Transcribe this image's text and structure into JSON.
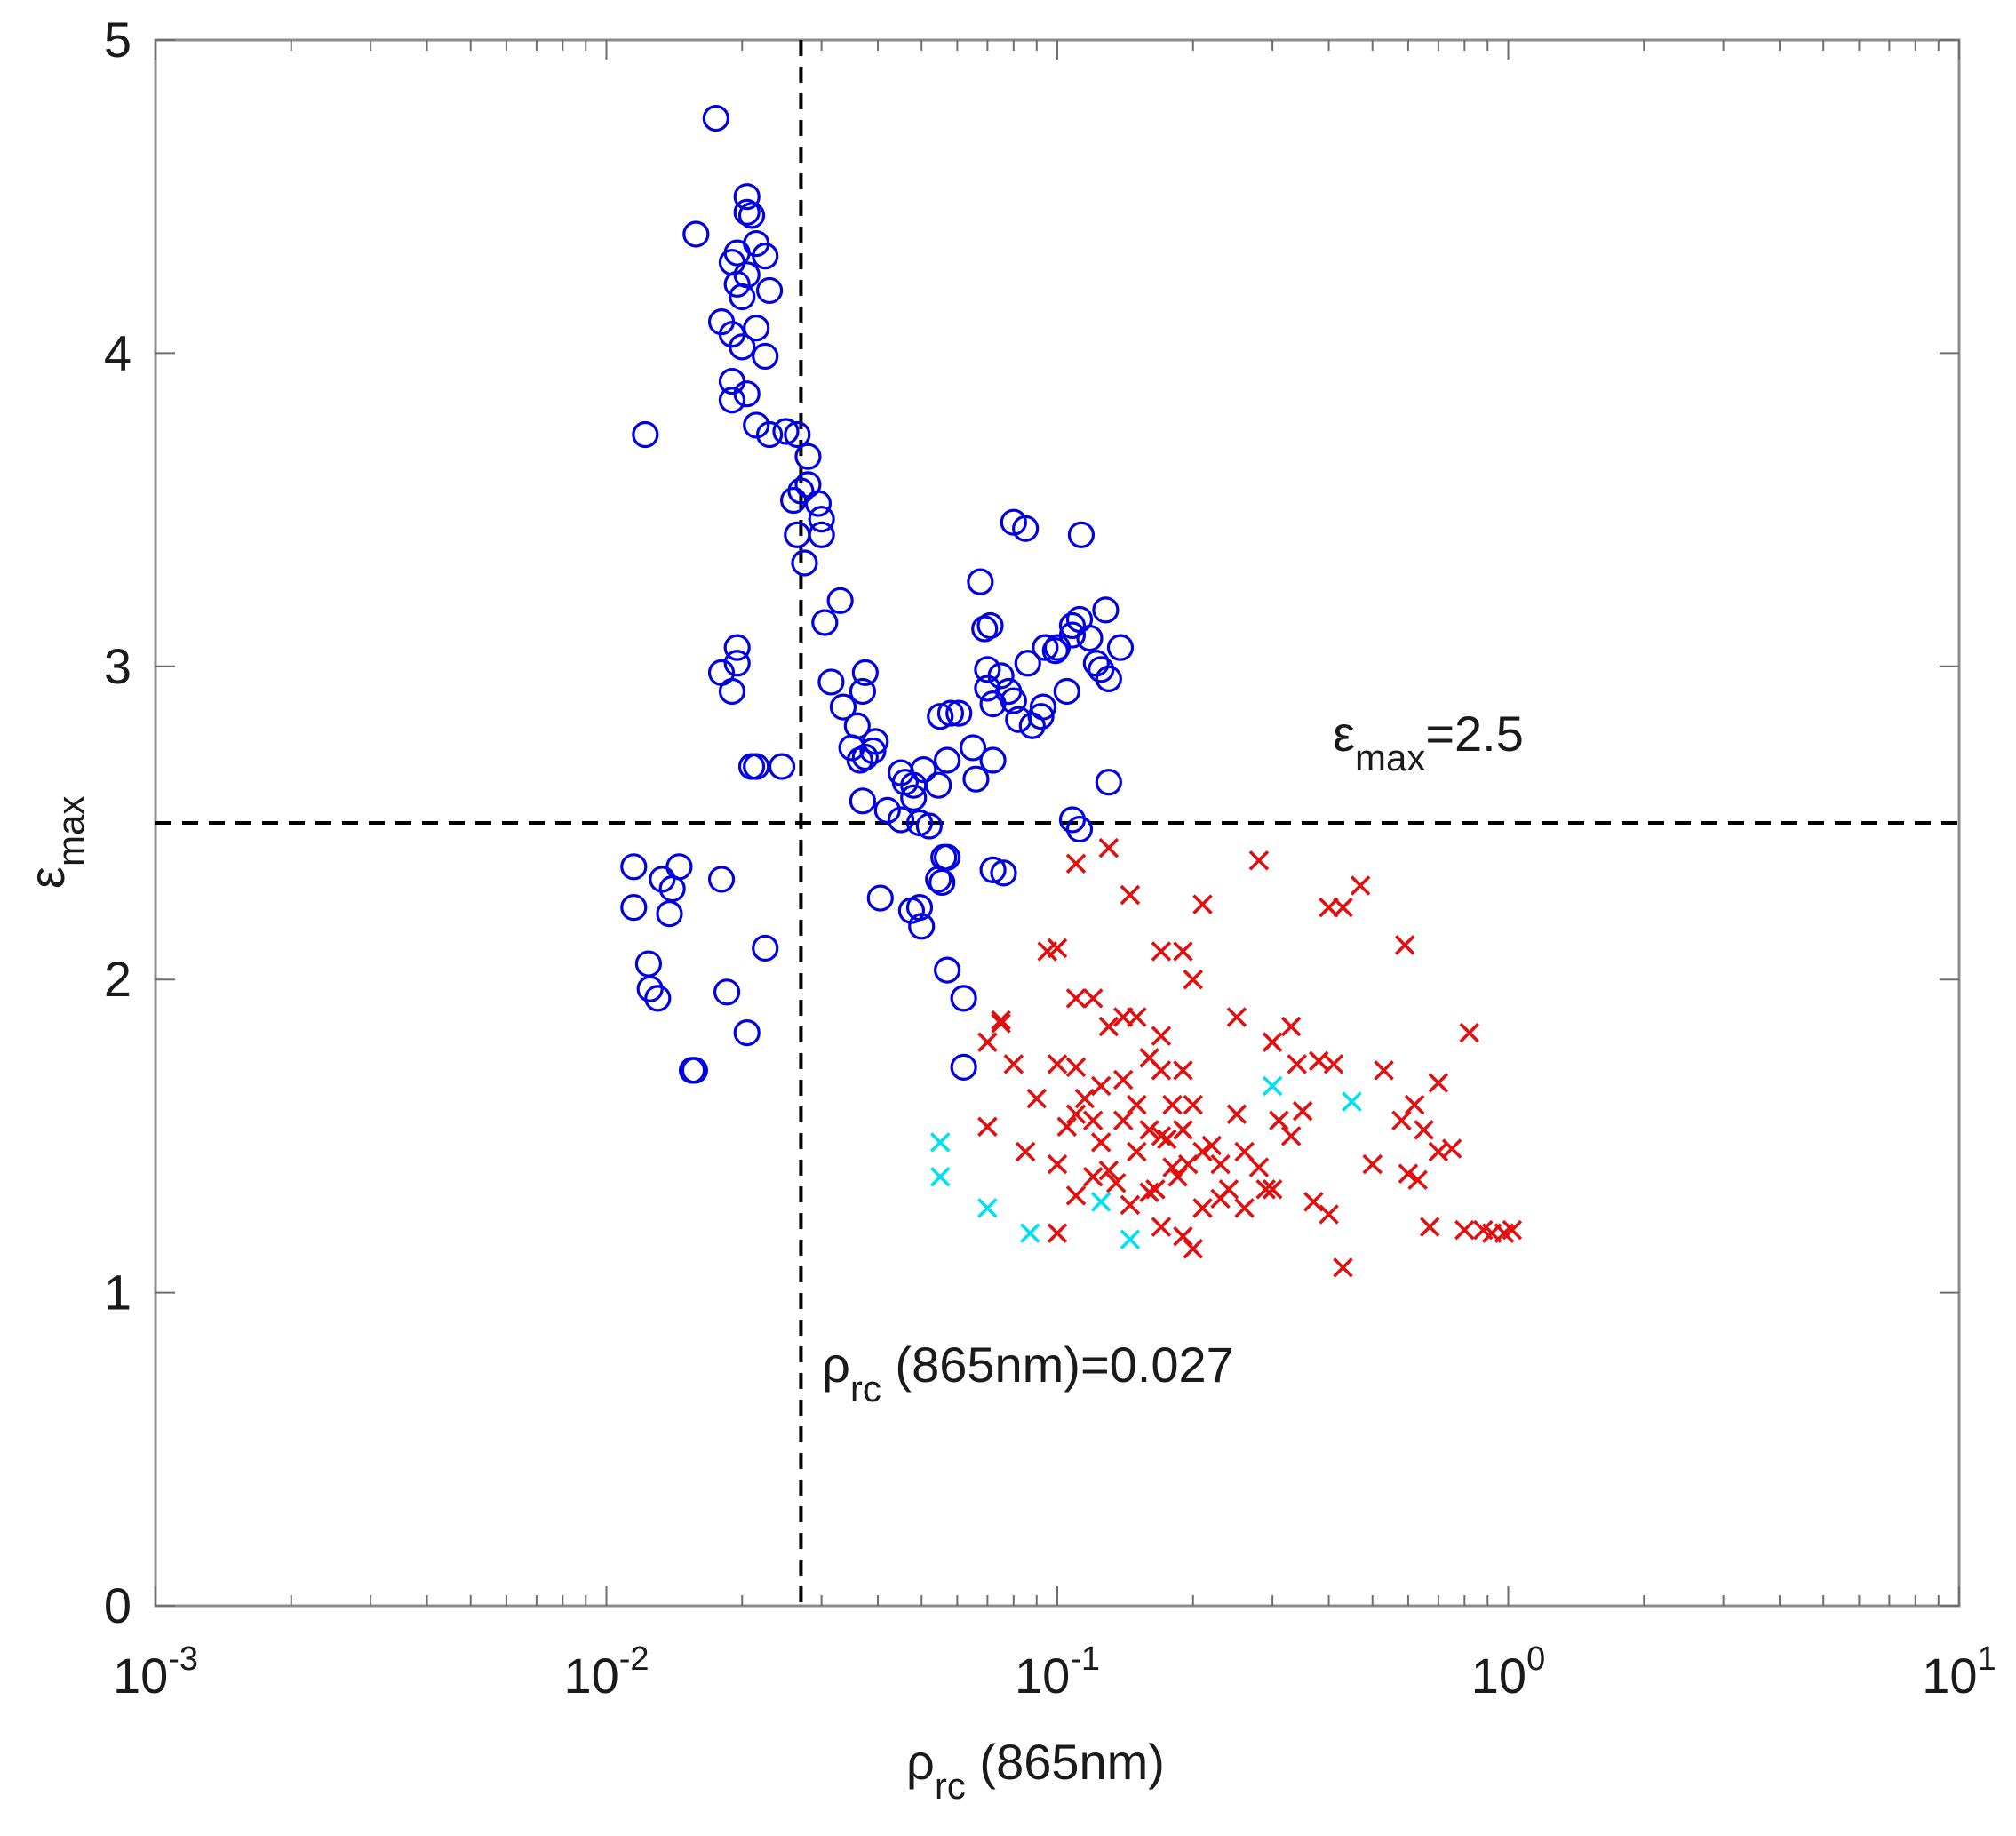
{
  "chart_data": {
    "type": "scatter",
    "title": "",
    "xlabel": {
      "symbol": "ρ",
      "subscript": "rc",
      "suffix": " (865nm)"
    },
    "ylabel": {
      "symbol": "ε",
      "subscript": "max"
    },
    "xscale": "log",
    "xlim": [
      0.001,
      10
    ],
    "ylim": [
      0,
      5
    ],
    "x_ticks": [
      {
        "value": 0.001,
        "base": "10",
        "exp": "-3"
      },
      {
        "value": 0.01,
        "base": "10",
        "exp": "-2"
      },
      {
        "value": 0.1,
        "base": "10",
        "exp": "-1"
      },
      {
        "value": 1,
        "base": "10",
        "exp": "0"
      },
      {
        "value": 10,
        "base": "10",
        "exp": "1"
      }
    ],
    "y_ticks": [
      0,
      1,
      2,
      3,
      4,
      5
    ],
    "grid": false,
    "thresholds": [
      {
        "orientation": "horizontal",
        "value": 2.5,
        "label": {
          "symbol": "ε",
          "subscript": "max",
          "suffix": "=2.5"
        }
      },
      {
        "orientation": "vertical",
        "value": 0.027,
        "label": {
          "symbol": "ρ",
          "subscript": "rc",
          "suffix": " (865nm)=0.027"
        }
      }
    ],
    "series": [
      {
        "name": "blue circles",
        "marker": "circle",
        "color": "#0000e0",
        "points": [
          [
            0.0175,
            4.75
          ],
          [
            0.0205,
            4.5
          ],
          [
            0.0205,
            4.45
          ],
          [
            0.021,
            4.44
          ],
          [
            0.0158,
            4.38
          ],
          [
            0.0215,
            4.35
          ],
          [
            0.0195,
            4.32
          ],
          [
            0.0225,
            4.31
          ],
          [
            0.019,
            4.29
          ],
          [
            0.0205,
            4.25
          ],
          [
            0.0195,
            4.22
          ],
          [
            0.023,
            4.2
          ],
          [
            0.02,
            4.18
          ],
          [
            0.018,
            4.1
          ],
          [
            0.0215,
            4.08
          ],
          [
            0.019,
            4.06
          ],
          [
            0.02,
            4.02
          ],
          [
            0.0225,
            3.99
          ],
          [
            0.019,
            3.91
          ],
          [
            0.0205,
            3.87
          ],
          [
            0.019,
            3.85
          ],
          [
            0.0215,
            3.77
          ],
          [
            0.023,
            3.74
          ],
          [
            0.025,
            3.75
          ],
          [
            0.0122,
            3.74
          ],
          [
            0.0265,
            3.74
          ],
          [
            0.028,
            3.67
          ],
          [
            0.028,
            3.58
          ],
          [
            0.027,
            3.56
          ],
          [
            0.026,
            3.53
          ],
          [
            0.0295,
            3.52
          ],
          [
            0.03,
            3.47
          ],
          [
            0.03,
            3.42
          ],
          [
            0.0265,
            3.42
          ],
          [
            0.0275,
            3.33
          ],
          [
            0.033,
            3.21
          ],
          [
            0.0305,
            3.14
          ],
          [
            0.0195,
            3.06
          ],
          [
            0.0195,
            3.01
          ],
          [
            0.018,
            2.98
          ],
          [
            0.019,
            2.92
          ],
          [
            0.0315,
            2.95
          ],
          [
            0.0375,
            2.98
          ],
          [
            0.037,
            2.92
          ],
          [
            0.0335,
            2.87
          ],
          [
            0.021,
            2.68
          ],
          [
            0.0215,
            2.68
          ],
          [
            0.0245,
            2.68
          ],
          [
            0.036,
            2.81
          ],
          [
            0.035,
            2.74
          ],
          [
            0.0395,
            2.76
          ],
          [
            0.039,
            2.73
          ],
          [
            0.0365,
            2.7
          ],
          [
            0.0375,
            2.71
          ],
          [
            0.045,
            2.66
          ],
          [
            0.046,
            2.63
          ],
          [
            0.048,
            2.62
          ],
          [
            0.0505,
            2.67
          ],
          [
            0.048,
            2.58
          ],
          [
            0.037,
            2.57
          ],
          [
            0.042,
            2.54
          ],
          [
            0.045,
            2.51
          ],
          [
            0.0495,
            2.5
          ],
          [
            0.052,
            2.49
          ],
          [
            0.0405,
            2.26
          ],
          [
            0.0475,
            2.22
          ],
          [
            0.0495,
            2.23
          ],
          [
            0.05,
            2.17
          ],
          [
            0.056,
            2.39
          ],
          [
            0.0545,
            2.32
          ],
          [
            0.057,
            2.39
          ],
          [
            0.0555,
            2.31
          ],
          [
            0.0545,
            2.62
          ],
          [
            0.055,
            2.84
          ],
          [
            0.058,
            2.85
          ],
          [
            0.0605,
            2.85
          ],
          [
            0.057,
            2.7
          ],
          [
            0.065,
            2.74
          ],
          [
            0.066,
            2.64
          ],
          [
            0.072,
            2.7
          ],
          [
            0.0675,
            3.27
          ],
          [
            0.069,
            3.12
          ],
          [
            0.071,
            3.13
          ],
          [
            0.07,
            2.99
          ],
          [
            0.075,
            2.97
          ],
          [
            0.07,
            2.93
          ],
          [
            0.072,
            2.88
          ],
          [
            0.078,
            2.92
          ],
          [
            0.08,
            2.89
          ],
          [
            0.082,
            2.83
          ],
          [
            0.086,
            3.01
          ],
          [
            0.088,
            2.81
          ],
          [
            0.092,
            2.84
          ],
          [
            0.094,
            3.06
          ],
          [
            0.099,
            3.05
          ],
          [
            0.093,
            2.87
          ],
          [
            0.1,
            3.06
          ],
          [
            0.105,
            2.92
          ],
          [
            0.108,
            3.13
          ],
          [
            0.112,
            3.15
          ],
          [
            0.108,
            3.1
          ],
          [
            0.118,
            3.09
          ],
          [
            0.122,
            3.01
          ],
          [
            0.125,
            2.99
          ],
          [
            0.128,
            3.18
          ],
          [
            0.13,
            2.96
          ],
          [
            0.138,
            3.06
          ],
          [
            0.08,
            3.46
          ],
          [
            0.085,
            3.44
          ],
          [
            0.113,
            3.42
          ],
          [
            0.108,
            2.51
          ],
          [
            0.112,
            2.48
          ],
          [
            0.13,
            2.63
          ],
          [
            0.072,
            2.35
          ],
          [
            0.076,
            2.34
          ],
          [
            0.057,
            2.03
          ],
          [
            0.062,
            1.94
          ],
          [
            0.062,
            1.72
          ],
          [
            0.0115,
            2.36
          ],
          [
            0.0115,
            2.23
          ],
          [
            0.0133,
            2.32
          ],
          [
            0.014,
            2.29
          ],
          [
            0.0145,
            2.36
          ],
          [
            0.0138,
            2.21
          ],
          [
            0.0124,
            2.05
          ],
          [
            0.0125,
            1.97
          ],
          [
            0.013,
            1.94
          ],
          [
            0.0155,
            1.71
          ],
          [
            0.0157,
            1.71
          ],
          [
            0.018,
            2.32
          ],
          [
            0.0185,
            1.96
          ],
          [
            0.0205,
            1.83
          ],
          [
            0.0225,
            2.1
          ]
        ]
      },
      {
        "name": "red crosses",
        "marker": "cross",
        "color": "#e01010",
        "points": [
          [
            0.11,
            2.37
          ],
          [
            0.13,
            2.42
          ],
          [
            0.145,
            2.27
          ],
          [
            0.21,
            2.24
          ],
          [
            0.28,
            2.38
          ],
          [
            0.4,
            2.23
          ],
          [
            0.43,
            2.23
          ],
          [
            0.47,
            2.3
          ],
          [
            0.59,
            2.11
          ],
          [
            0.095,
            2.09
          ],
          [
            0.1,
            2.1
          ],
          [
            0.17,
            2.09
          ],
          [
            0.19,
            2.09
          ],
          [
            0.2,
            2.0
          ],
          [
            0.11,
            1.94
          ],
          [
            0.12,
            1.94
          ],
          [
            0.075,
            1.86
          ],
          [
            0.07,
            1.8
          ],
          [
            0.08,
            1.73
          ],
          [
            0.1,
            1.73
          ],
          [
            0.11,
            1.72
          ],
          [
            0.13,
            1.85
          ],
          [
            0.14,
            1.88
          ],
          [
            0.15,
            1.88
          ],
          [
            0.17,
            1.82
          ],
          [
            0.16,
            1.75
          ],
          [
            0.17,
            1.71
          ],
          [
            0.19,
            1.71
          ],
          [
            0.25,
            1.88
          ],
          [
            0.3,
            1.8
          ],
          [
            0.33,
            1.85
          ],
          [
            0.34,
            1.73
          ],
          [
            0.38,
            1.74
          ],
          [
            0.41,
            1.73
          ],
          [
            0.53,
            1.71
          ],
          [
            0.58,
            1.55
          ],
          [
            0.62,
            1.6
          ],
          [
            0.7,
            1.67
          ],
          [
            0.82,
            1.83
          ],
          [
            0.07,
            1.53
          ],
          [
            0.075,
            1.87
          ],
          [
            0.085,
            1.45
          ],
          [
            0.1,
            1.41
          ],
          [
            0.11,
            1.57
          ],
          [
            0.12,
            1.55
          ],
          [
            0.125,
            1.48
          ],
          [
            0.14,
            1.55
          ],
          [
            0.15,
            1.6
          ],
          [
            0.16,
            1.52
          ],
          [
            0.17,
            1.5
          ],
          [
            0.175,
            1.49
          ],
          [
            0.18,
            1.4
          ],
          [
            0.19,
            1.52
          ],
          [
            0.2,
            1.6
          ],
          [
            0.21,
            1.45
          ],
          [
            0.22,
            1.47
          ],
          [
            0.23,
            1.41
          ],
          [
            0.24,
            1.33
          ],
          [
            0.25,
            1.57
          ],
          [
            0.26,
            1.45
          ],
          [
            0.28,
            1.4
          ],
          [
            0.3,
            1.33
          ],
          [
            0.31,
            1.55
          ],
          [
            0.33,
            1.5
          ],
          [
            0.35,
            1.58
          ],
          [
            0.37,
            1.29
          ],
          [
            0.4,
            1.25
          ],
          [
            0.43,
            1.08
          ],
          [
            0.5,
            1.41
          ],
          [
            0.6,
            1.38
          ],
          [
            0.63,
            1.36
          ],
          [
            0.65,
            1.52
          ],
          [
            0.67,
            1.21
          ],
          [
            0.7,
            1.45
          ],
          [
            0.75,
            1.46
          ],
          [
            0.8,
            1.2
          ],
          [
            0.88,
            1.2
          ],
          [
            0.92,
            1.19
          ],
          [
            0.98,
            1.19
          ],
          [
            1.02,
            1.2
          ],
          [
            0.1,
            1.19
          ],
          [
            0.11,
            1.31
          ],
          [
            0.12,
            1.37
          ],
          [
            0.135,
            1.35
          ],
          [
            0.145,
            1.28
          ],
          [
            0.16,
            1.32
          ],
          [
            0.17,
            1.21
          ],
          [
            0.19,
            1.18
          ],
          [
            0.2,
            1.14
          ],
          [
            0.21,
            1.27
          ],
          [
            0.23,
            1.3
          ],
          [
            0.26,
            1.27
          ],
          [
            0.29,
            1.33
          ],
          [
            0.13,
            1.39
          ],
          [
            0.15,
            1.45
          ],
          [
            0.165,
            1.33
          ],
          [
            0.185,
            1.37
          ],
          [
            0.195,
            1.41
          ],
          [
            0.115,
            1.62
          ],
          [
            0.125,
            1.66
          ],
          [
            0.14,
            1.68
          ],
          [
            0.18,
            1.6
          ],
          [
            0.105,
            1.53
          ],
          [
            0.09,
            1.62
          ]
        ]
      },
      {
        "name": "cyan crosses",
        "marker": "cross",
        "color": "#00e0f0",
        "points": [
          [
            0.055,
            1.48
          ],
          [
            0.055,
            1.37
          ],
          [
            0.07,
            1.27
          ],
          [
            0.087,
            1.19
          ],
          [
            0.125,
            1.29
          ],
          [
            0.145,
            1.17
          ],
          [
            0.3,
            1.66
          ],
          [
            0.45,
            1.61
          ]
        ]
      }
    ]
  }
}
